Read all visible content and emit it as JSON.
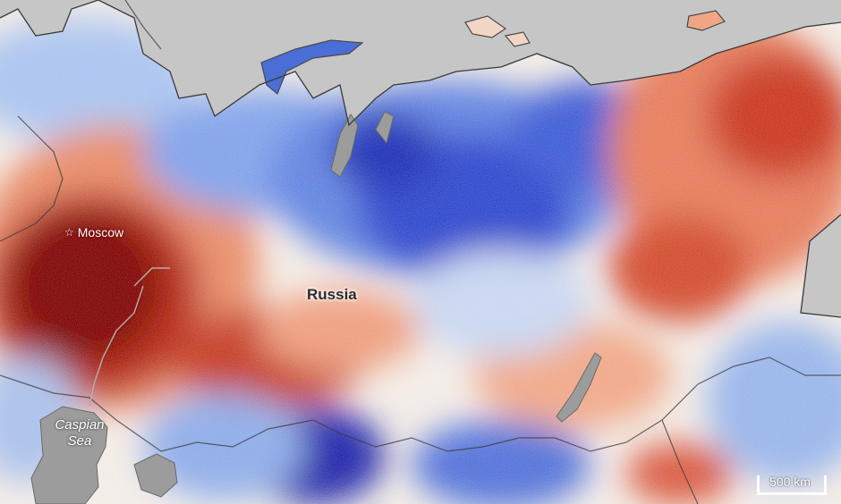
{
  "labels": {
    "moscow": "Moscow",
    "country": "Russia",
    "caspian": "Caspian Sea",
    "scale": "500 km"
  },
  "icons": {
    "capital": "star-icon"
  },
  "colors": {
    "land_outside": "#c8c8c8",
    "warm_extreme": "#7a0000",
    "warm_strong": "#c0301a",
    "warm_mild": "#f0a080",
    "neutral": "#f6efe8",
    "cool_mild": "#a8c4f0",
    "cool_strong": "#3a5cd8",
    "cool_extreme": "#0a1aa0",
    "water": "#9a9a9a",
    "borders": "#3a3a3a"
  }
}
